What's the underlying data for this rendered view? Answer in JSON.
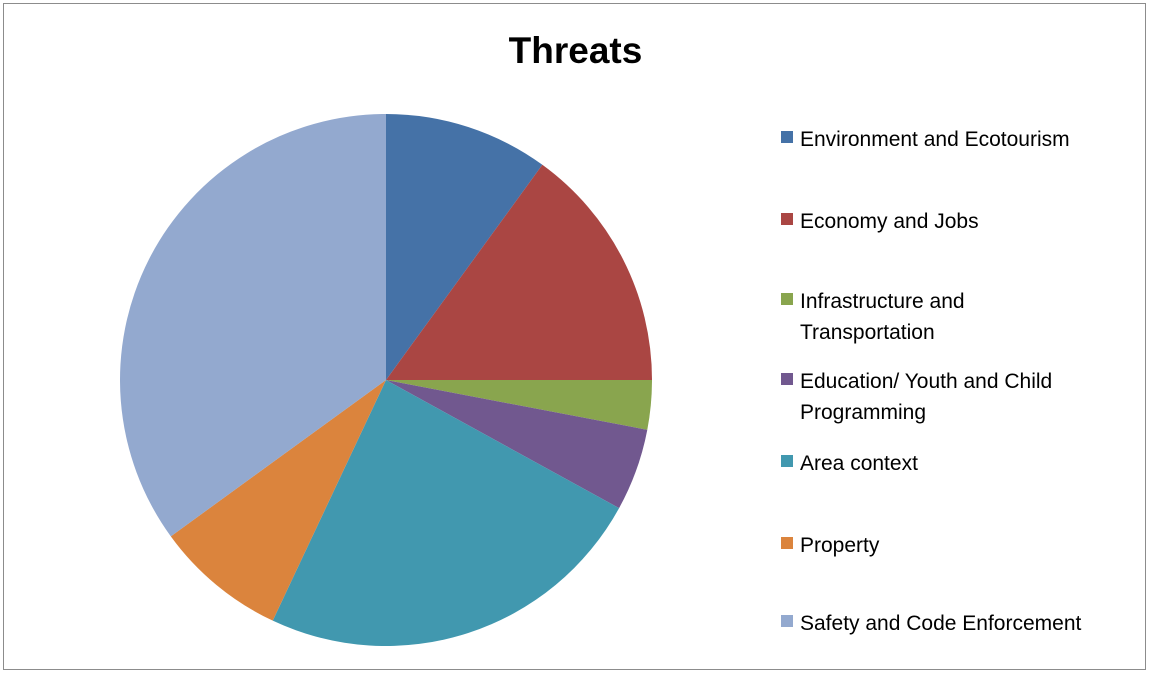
{
  "chart_data": {
    "type": "pie",
    "title": "Threats",
    "legend_position": "right",
    "start_angle": "12 o'clock",
    "direction": "clockwise",
    "slices": [
      {
        "label": "Environment and Ecotourism",
        "label_lines": [
          "Environment and Ecotourism"
        ],
        "value": 10,
        "color": "#4572A7"
      },
      {
        "label": "Economy and Jobs",
        "label_lines": [
          "Economy and Jobs"
        ],
        "value": 15,
        "color": "#AA4643"
      },
      {
        "label": "Infrastructure and Transportation",
        "label_lines": [
          "Infrastructure and",
          "Transportation"
        ],
        "value": 3,
        "color": "#89A54E"
      },
      {
        "label": "Education/ Youth and Child Programming",
        "label_lines": [
          "Education/ Youth and Child",
          "Programming"
        ],
        "value": 5,
        "color": "#71588F"
      },
      {
        "label": "Area context",
        "label_lines": [
          "Area context"
        ],
        "value": 24,
        "color": "#4198AF"
      },
      {
        "label": "Property",
        "label_lines": [
          "Property"
        ],
        "value": 8,
        "color": "#DB843D"
      },
      {
        "label": "Safety and Code Enforcement",
        "label_lines": [
          "Safety and Code Enforcement"
        ],
        "value": 35,
        "color": "#93A9CF"
      }
    ]
  }
}
